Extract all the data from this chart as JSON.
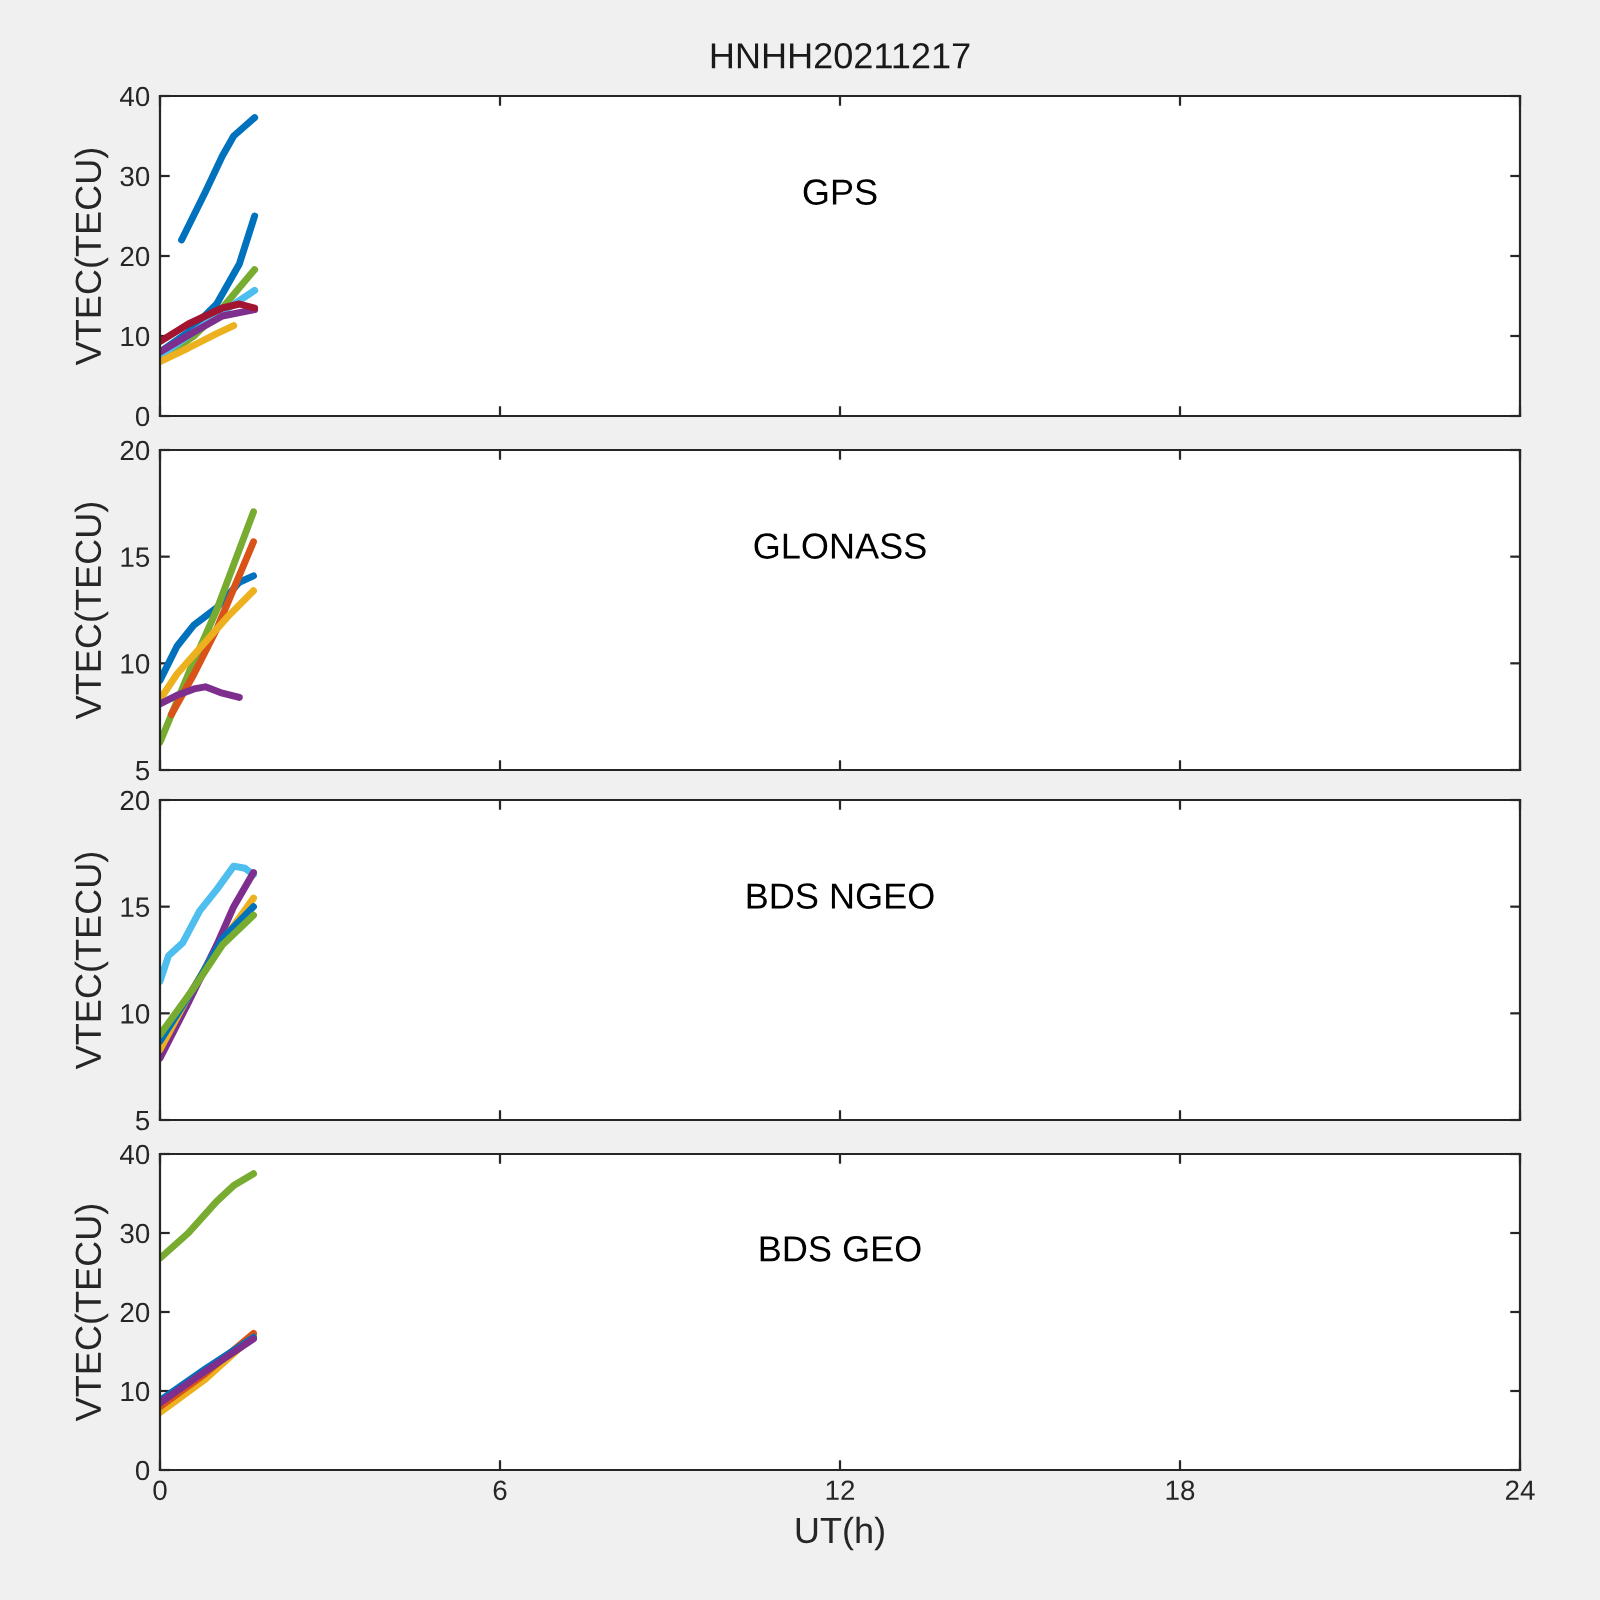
{
  "chart_data": [
    {
      "type": "line",
      "title": "HNHH20211217",
      "ylabel": "VTEC(TECU)",
      "annotations": [
        "GPS"
      ],
      "xlim": [
        0,
        24
      ],
      "xticks": [
        0,
        6,
        12,
        18,
        24
      ],
      "ylim": [
        0,
        40
      ],
      "yticks": [
        0,
        10,
        20,
        30,
        40
      ],
      "tick_labels": "y",
      "grid": false,
      "series": [
        {
          "color": "#0072bd",
          "x": [
            0.38,
            0.8,
            1.1,
            1.3,
            1.67
          ],
          "values": [
            22,
            28,
            32.5,
            35,
            37.3
          ]
        },
        {
          "color": "#0072bd",
          "x": [
            0,
            0.5,
            1.0,
            1.4,
            1.67
          ],
          "values": [
            8,
            10.5,
            14,
            19,
            25
          ]
        },
        {
          "color": "#77ac30",
          "x": [
            0,
            0.6,
            1.1,
            1.67
          ],
          "values": [
            7,
            10,
            13.5,
            18.3
          ]
        },
        {
          "color": "#4dbeee",
          "x": [
            0,
            0.6,
            1.1,
            1.67
          ],
          "values": [
            7.5,
            10.5,
            13,
            15.7
          ]
        },
        {
          "color": "#7e2f8e",
          "x": [
            0,
            0.6,
            1.1,
            1.67
          ],
          "values": [
            8,
            10.5,
            12.5,
            13.3
          ]
        },
        {
          "color": "#a2142f",
          "x": [
            0,
            0.5,
            1.1,
            1.4,
            1.67
          ],
          "values": [
            9.3,
            11.5,
            13.5,
            14,
            13.5
          ]
        },
        {
          "color": "#edb120",
          "x": [
            0,
            0.5,
            1.0,
            1.3
          ],
          "values": [
            6.8,
            8.5,
            10.3,
            11.3
          ]
        }
      ]
    },
    {
      "type": "line",
      "ylabel": "VTEC(TECU)",
      "annotations": [
        "GLONASS"
      ],
      "xlim": [
        0,
        24
      ],
      "xticks": [
        0,
        6,
        12,
        18,
        24
      ],
      "ylim": [
        5,
        20
      ],
      "yticks": [
        5,
        10,
        15,
        20
      ],
      "tick_labels": "y",
      "grid": false,
      "series": [
        {
          "color": "#0072bd",
          "x": [
            0,
            0.3,
            0.6,
            1.0,
            1.4,
            1.65
          ],
          "values": [
            9.2,
            10.8,
            11.8,
            12.6,
            13.8,
            14.1
          ]
        },
        {
          "color": "#77ac30",
          "x": [
            0,
            0.5,
            1.0,
            1.65
          ],
          "values": [
            6.3,
            9.5,
            12.5,
            17.1
          ]
        },
        {
          "color": "#d95319",
          "x": [
            0.2,
            0.6,
            1.0,
            1.65
          ],
          "values": [
            7.6,
            9.5,
            11.6,
            15.7
          ]
        },
        {
          "color": "#edb120",
          "x": [
            0,
            0.3,
            0.8,
            1.2,
            1.65
          ],
          "values": [
            8.3,
            9.5,
            11,
            12.2,
            13.4
          ]
        },
        {
          "color": "#7e2f8e",
          "x": [
            0,
            0.3,
            0.6,
            0.8,
            1.1,
            1.4
          ],
          "values": [
            8.1,
            8.5,
            8.8,
            8.9,
            8.6,
            8.4
          ]
        }
      ]
    },
    {
      "type": "line",
      "ylabel": "VTEC(TECU)",
      "annotations": [
        "BDS NGEO"
      ],
      "xlim": [
        0,
        24
      ],
      "xticks": [
        0,
        6,
        12,
        18,
        24
      ],
      "ylim": [
        5,
        20
      ],
      "yticks": [
        5,
        10,
        15,
        20
      ],
      "tick_labels": "y",
      "grid": false,
      "series": [
        {
          "color": "#4dbeee",
          "x": [
            0,
            0.15,
            0.4,
            0.7,
            1.0,
            1.3,
            1.5,
            1.65
          ],
          "values": [
            11.5,
            12.7,
            13.3,
            14.8,
            15.8,
            16.9,
            16.8,
            16.5
          ]
        },
        {
          "color": "#7e2f8e",
          "x": [
            0,
            0.5,
            1.0,
            1.3,
            1.65
          ],
          "values": [
            7.9,
            10.5,
            13.2,
            15,
            16.6
          ]
        },
        {
          "color": "#edb120",
          "x": [
            0,
            0.5,
            1.0,
            1.65
          ],
          "values": [
            8.3,
            10.8,
            13,
            15.4
          ]
        },
        {
          "color": "#0072bd",
          "x": [
            0,
            0.6,
            1.1,
            1.65
          ],
          "values": [
            8.7,
            11.2,
            13.5,
            15
          ]
        },
        {
          "color": "#77ac30",
          "x": [
            0,
            0.6,
            1.1,
            1.65
          ],
          "values": [
            9,
            11.2,
            13.2,
            14.6
          ]
        }
      ]
    },
    {
      "type": "line",
      "xlabel": "UT(h)",
      "ylabel": "VTEC(TECU)",
      "annotations": [
        "BDS GEO"
      ],
      "xlim": [
        0,
        24
      ],
      "xticks": [
        0,
        6,
        12,
        18,
        24
      ],
      "ylim": [
        0,
        40
      ],
      "yticks": [
        0,
        10,
        20,
        30,
        40
      ],
      "grid": false,
      "series": [
        {
          "color": "#77ac30",
          "x": [
            0,
            0.5,
            1.0,
            1.3,
            1.65
          ],
          "values": [
            26.8,
            30,
            34,
            36,
            37.5
          ]
        },
        {
          "color": "#edb120",
          "x": [
            0,
            0.8,
            1.65
          ],
          "values": [
            7.3,
            11.5,
            17
          ]
        },
        {
          "color": "#d95319",
          "x": [
            0,
            0.8,
            1.65
          ],
          "values": [
            8,
            12.2,
            17.3
          ]
        },
        {
          "color": "#0072bd",
          "x": [
            0,
            0.8,
            1.65
          ],
          "values": [
            8.8,
            12.8,
            16.8
          ]
        },
        {
          "color": "#7e2f8e",
          "x": [
            0,
            0.8,
            1.65
          ],
          "values": [
            8.5,
            12.5,
            16.6
          ]
        }
      ]
    }
  ]
}
